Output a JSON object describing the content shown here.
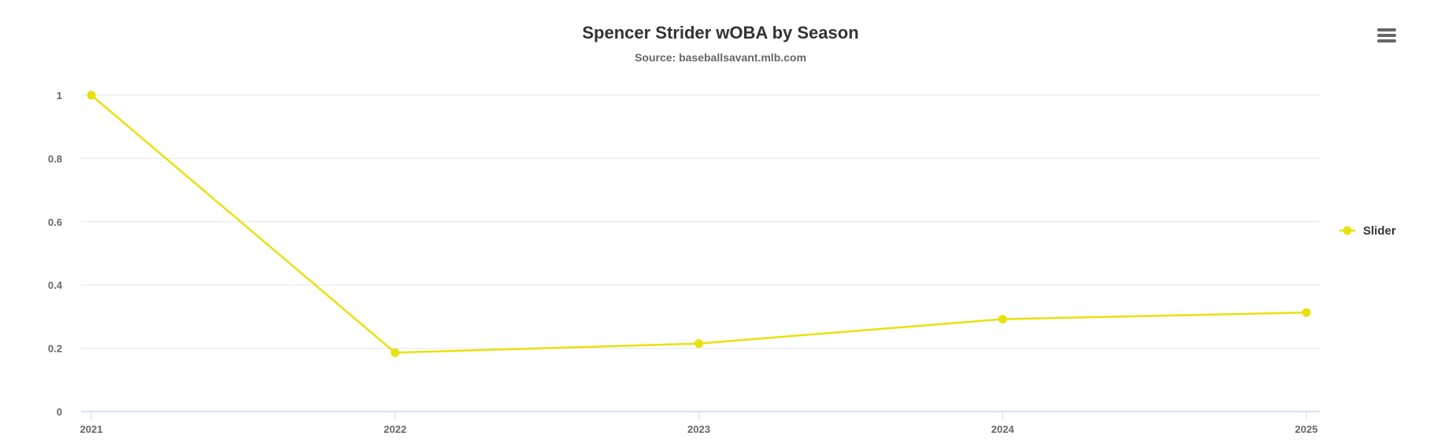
{
  "chart_data": {
    "type": "line",
    "title": "Spencer Strider wOBA by Season",
    "subtitle": "Source: baseballsavant.mlb.com",
    "x": [
      "2021",
      "2022",
      "2023",
      "2024",
      "2025"
    ],
    "series": [
      {
        "name": "Slider",
        "color": "#e8e10c",
        "values": [
          1.0,
          0.186,
          0.215,
          0.292,
          0.313
        ]
      }
    ],
    "y_ticks": [
      "0",
      "0.2",
      "0.4",
      "0.6",
      "0.8",
      "1"
    ],
    "ylim": [
      0,
      1
    ],
    "grid": true,
    "legend_position": "right"
  },
  "menu": {
    "icon": "hamburger-menu-icon"
  }
}
